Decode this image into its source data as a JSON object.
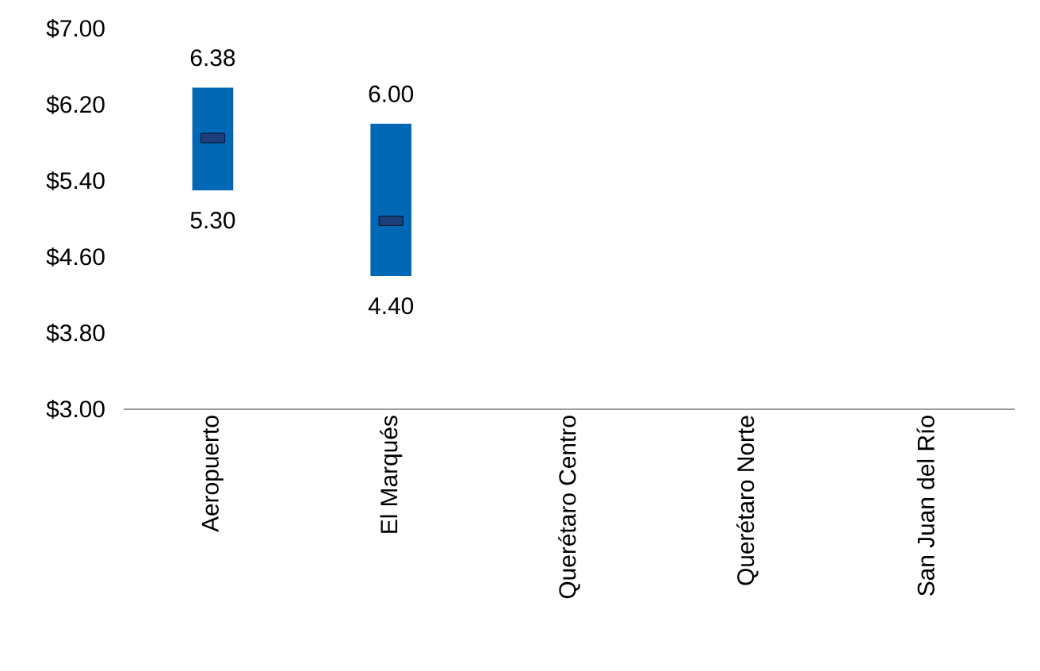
{
  "chart_data": {
    "type": "bar",
    "categories": [
      "Aeropuerto",
      "El Marqués",
      "Querétaro Centro",
      "Querétaro Norte",
      "San Juan del Río"
    ],
    "series": [
      {
        "color": "#0068b4",
        "base": [
          5.3,
          4.4,
          null,
          null,
          null
        ],
        "values": [
          1.08,
          1.6,
          null,
          null,
          null
        ]
      },
      {
        "type": "scatter",
        "marker": "square",
        "color": "#1c3e7a",
        "x": [
          "Aeropuerto",
          "El Marqués"
        ],
        "values": [
          5.85,
          4.98
        ]
      }
    ],
    "ylim": [
      3,
      7
    ],
    "yticks": [
      {
        "value": 3,
        "label": "$3.00"
      },
      {
        "value": 3.8,
        "label": "$3.80"
      },
      {
        "value": 4.6,
        "label": "$4.60"
      },
      {
        "value": 5.4,
        "label": "$5.40"
      },
      {
        "value": 6.2,
        "label": "$6.20"
      },
      {
        "value": 7,
        "label": "$7.00"
      }
    ],
    "annotations": [
      {
        "text": "6.38",
        "x": "Aeropuerto",
        "y": 6.38
      },
      {
        "text": "5.30",
        "x": "Aeropuerto",
        "y": 5.3
      },
      {
        "text": "6.00",
        "x": "El Marqués",
        "y": 6.0
      },
      {
        "text": "4.40",
        "x": "El Marqués",
        "y": 4.4
      }
    ],
    "grid": false
  }
}
